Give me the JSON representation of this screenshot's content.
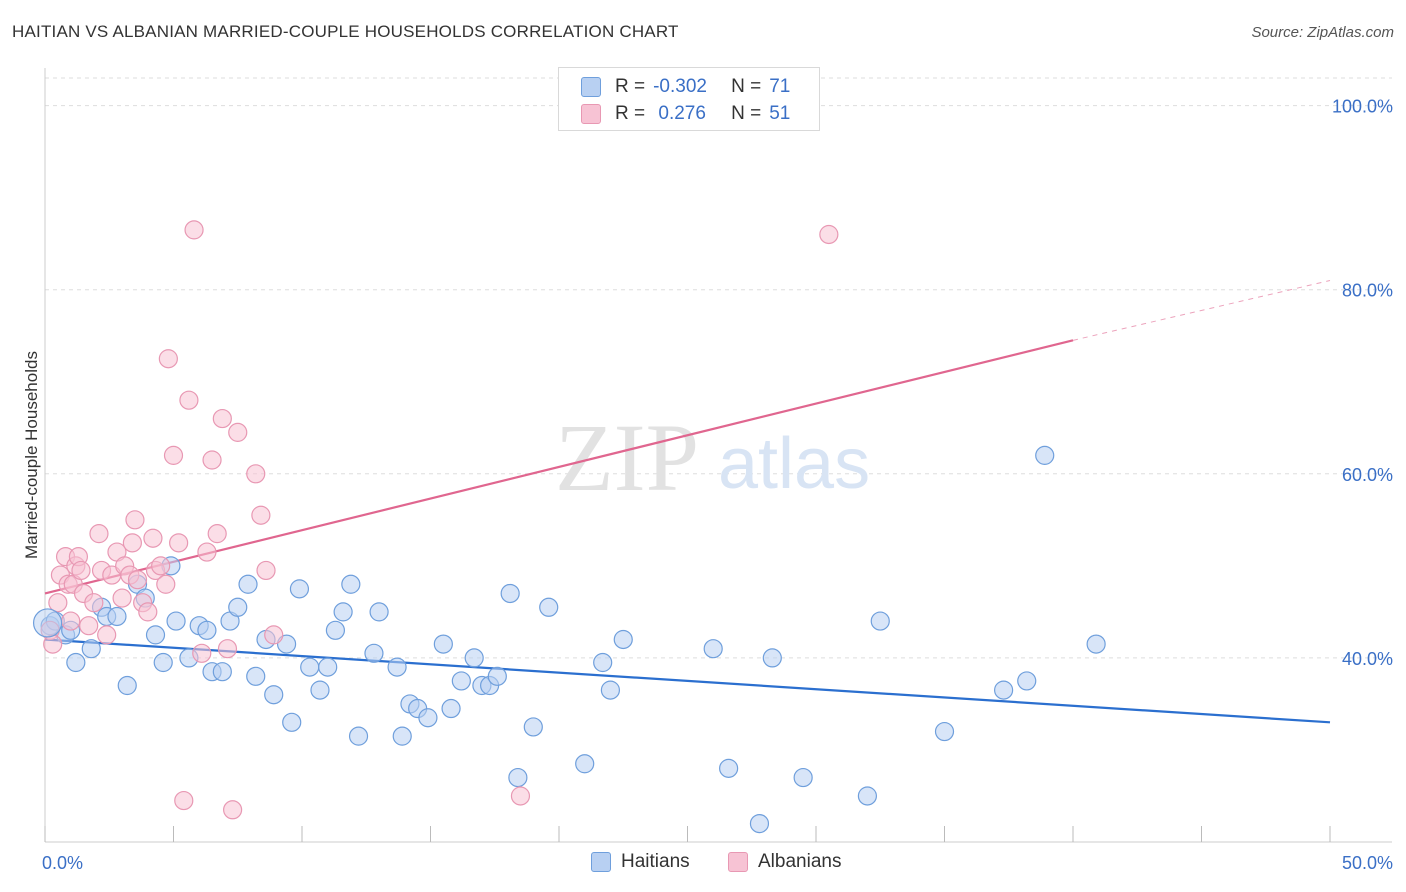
{
  "title": "HAITIAN VS ALBANIAN MARRIED-COUPLE HOUSEHOLDS CORRELATION CHART",
  "source": "Source: ZipAtlas.com",
  "watermark": {
    "zip": "ZIP",
    "atlas": "atlas"
  },
  "legend_top": {
    "rows": [
      {
        "r_label": "R =",
        "r_value": "-0.302",
        "n_label": "N =",
        "n_value": "71"
      },
      {
        "r_label": "R =",
        "r_value": " 0.276",
        "n_label": "N =",
        "n_value": "51"
      }
    ]
  },
  "legend_bottom": {
    "haitians": "Haitians",
    "albanians": "Albanians"
  },
  "colors": {
    "haitian_fill": "#b8d0f2",
    "haitian_stroke": "#6f9fdc",
    "haitian_line": "#2b6fcf",
    "albanian_fill": "#f7c3d4",
    "albanian_stroke": "#e898b3",
    "albanian_line": "#e0668f",
    "tick_label": "#3a6fc6",
    "grid": "#dddddd"
  },
  "chart_data": {
    "type": "scatter",
    "title": "HAITIAN VS ALBANIAN MARRIED-COUPLE HOUSEHOLDS CORRELATION CHART",
    "xlabel": "",
    "ylabel": "Married-couple Households",
    "xlim": [
      0,
      50
    ],
    "ylim": [
      20,
      103
    ],
    "x_tick_labels": [
      "0.0%",
      "50.0%"
    ],
    "y_ticks": [
      40,
      60,
      80,
      100
    ],
    "y_tick_labels": [
      "40.0%",
      "60.0%",
      "80.0%",
      "100.0%"
    ],
    "grid": true,
    "legend_position": "top-center",
    "series": [
      {
        "name": "Haitians",
        "R": -0.302,
        "N": 71,
        "trend": {
          "x0": 0,
          "y0": 42.0,
          "x1": 50,
          "y1": 33.0
        },
        "points": [
          [
            0.2,
            43.5
          ],
          [
            0.4,
            44.0
          ],
          [
            0.8,
            42.5
          ],
          [
            1.0,
            43.0
          ],
          [
            1.2,
            39.5
          ],
          [
            1.8,
            41.0
          ],
          [
            2.2,
            45.5
          ],
          [
            2.4,
            44.5
          ],
          [
            2.8,
            44.5
          ],
          [
            3.2,
            37.0
          ],
          [
            3.6,
            48.0
          ],
          [
            3.9,
            46.5
          ],
          [
            4.3,
            42.5
          ],
          [
            4.6,
            39.5
          ],
          [
            4.9,
            50.0
          ],
          [
            5.1,
            44.0
          ],
          [
            5.6,
            40.0
          ],
          [
            6.0,
            43.5
          ],
          [
            6.3,
            43.0
          ],
          [
            6.5,
            38.5
          ],
          [
            6.9,
            38.5
          ],
          [
            7.2,
            44.0
          ],
          [
            7.5,
            45.5
          ],
          [
            7.9,
            48.0
          ],
          [
            8.2,
            38.0
          ],
          [
            8.6,
            42.0
          ],
          [
            8.9,
            36.0
          ],
          [
            9.4,
            41.5
          ],
          [
            9.6,
            33.0
          ],
          [
            9.9,
            47.5
          ],
          [
            10.3,
            39.0
          ],
          [
            10.7,
            36.5
          ],
          [
            11.0,
            39.0
          ],
          [
            11.3,
            43.0
          ],
          [
            11.6,
            45.0
          ],
          [
            11.9,
            48.0
          ],
          [
            12.2,
            31.5
          ],
          [
            12.8,
            40.5
          ],
          [
            13.0,
            45.0
          ],
          [
            13.7,
            39.0
          ],
          [
            13.9,
            31.5
          ],
          [
            14.2,
            35.0
          ],
          [
            14.5,
            34.5
          ],
          [
            14.9,
            33.5
          ],
          [
            15.5,
            41.5
          ],
          [
            15.8,
            34.5
          ],
          [
            16.2,
            37.5
          ],
          [
            16.7,
            40.0
          ],
          [
            17.0,
            37.0
          ],
          [
            17.3,
            37.0
          ],
          [
            17.6,
            38.0
          ],
          [
            18.1,
            47.0
          ],
          [
            18.4,
            27.0
          ],
          [
            19.0,
            32.5
          ],
          [
            19.6,
            45.5
          ],
          [
            21.0,
            28.5
          ],
          [
            21.7,
            39.5
          ],
          [
            22.0,
            36.5
          ],
          [
            22.5,
            42.0
          ],
          [
            26.0,
            41.0
          ],
          [
            26.6,
            28.0
          ],
          [
            27.8,
            22.0
          ],
          [
            28.3,
            40.0
          ],
          [
            29.5,
            27.0
          ],
          [
            32.0,
            25.0
          ],
          [
            32.5,
            44.0
          ],
          [
            35.0,
            32.0
          ],
          [
            37.3,
            36.5
          ],
          [
            38.2,
            37.5
          ],
          [
            38.9,
            62.0
          ],
          [
            40.9,
            41.5
          ]
        ]
      },
      {
        "name": "Albanians",
        "R": 0.276,
        "N": 51,
        "trend": {
          "x0": 0,
          "y0": 47.0,
          "x1": 40,
          "y1": 74.5,
          "dash_to_x": 50,
          "dash_to_y": 81.0
        },
        "points": [
          [
            0.2,
            43.0
          ],
          [
            0.3,
            41.5
          ],
          [
            0.5,
            46.0
          ],
          [
            0.6,
            49.0
          ],
          [
            0.8,
            51.0
          ],
          [
            0.9,
            48.0
          ],
          [
            1.0,
            44.0
          ],
          [
            1.1,
            48.0
          ],
          [
            1.2,
            50.0
          ],
          [
            1.3,
            51.0
          ],
          [
            1.5,
            47.0
          ],
          [
            1.7,
            43.5
          ],
          [
            1.9,
            46.0
          ],
          [
            2.1,
            53.5
          ],
          [
            2.2,
            49.5
          ],
          [
            2.4,
            42.5
          ],
          [
            2.6,
            49.0
          ],
          [
            2.8,
            51.5
          ],
          [
            3.0,
            46.5
          ],
          [
            3.1,
            50.0
          ],
          [
            3.3,
            49.0
          ],
          [
            3.4,
            52.5
          ],
          [
            3.5,
            55.0
          ],
          [
            3.6,
            48.5
          ],
          [
            3.8,
            46.0
          ],
          [
            4.0,
            45.0
          ],
          [
            4.2,
            53.0
          ],
          [
            4.3,
            49.5
          ],
          [
            4.5,
            50.0
          ],
          [
            4.7,
            48.0
          ],
          [
            4.8,
            72.5
          ],
          [
            5.0,
            62.0
          ],
          [
            5.2,
            52.5
          ],
          [
            5.4,
            24.5
          ],
          [
            5.6,
            68.0
          ],
          [
            5.8,
            86.5
          ],
          [
            6.1,
            40.5
          ],
          [
            6.3,
            51.5
          ],
          [
            6.5,
            61.5
          ],
          [
            6.7,
            53.5
          ],
          [
            6.9,
            66.0
          ],
          [
            7.1,
            41.0
          ],
          [
            7.3,
            23.5
          ],
          [
            7.5,
            64.5
          ],
          [
            8.2,
            60.0
          ],
          [
            8.4,
            55.5
          ],
          [
            8.6,
            49.5
          ],
          [
            8.9,
            42.5
          ],
          [
            18.5,
            25.0
          ],
          [
            30.5,
            86.0
          ],
          [
            1.4,
            49.5
          ]
        ]
      }
    ]
  }
}
